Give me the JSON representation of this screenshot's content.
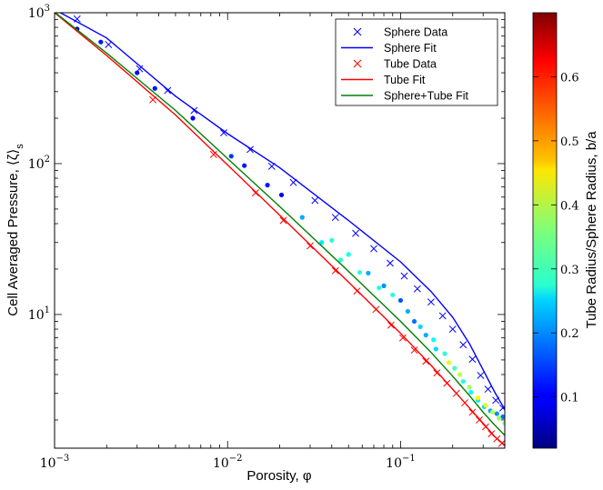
{
  "chart_data": {
    "type": "scatter",
    "title": "",
    "xlabel": "Porosity, φ",
    "ylabel": "Cell Averaged Pressure, ⟨ζ⟩",
    "ylabel_subscript": "s",
    "xscale": "log",
    "yscale": "log",
    "xlim": [
      0.001,
      0.4
    ],
    "ylim": [
      1.3,
      1000
    ],
    "x_ticks": [
      {
        "value": 0.001,
        "base": "10",
        "exp": "−3"
      },
      {
        "value": 0.01,
        "base": "10",
        "exp": "−2"
      },
      {
        "value": 0.1,
        "base": "10",
        "exp": "−1"
      }
    ],
    "y_ticks": [
      {
        "value": 10,
        "base": "10",
        "exp": "1"
      },
      {
        "value": 100,
        "base": "10",
        "exp": "2"
      },
      {
        "value": 1000,
        "base": "10",
        "exp": "3"
      }
    ],
    "legend_position": "top-right",
    "legend": [
      {
        "label": "Sphere Data",
        "kind": "marker",
        "color": "#0000ff"
      },
      {
        "label": "Sphere Fit",
        "kind": "line",
        "color": "#0000ff"
      },
      {
        "label": "Tube Data",
        "kind": "marker",
        "color": "#ff0000"
      },
      {
        "label": "Tube Fit",
        "kind": "line",
        "color": "#ff0000"
      },
      {
        "label": "Sphere+Tube Fit",
        "kind": "line",
        "color": "#008000"
      }
    ],
    "colorbar": {
      "label": "Tube Radius/Sphere Radius, b/a",
      "range": [
        0.02,
        0.7
      ],
      "ticks": [
        "0.1",
        "0.2",
        "0.3",
        "0.4",
        "0.5",
        "0.6"
      ]
    },
    "series": [
      {
        "name": "Sphere Data",
        "marker": "x",
        "color": "#0000ff",
        "x": [
          0.00135,
          0.00205,
          0.0031,
          0.0045,
          0.0064,
          0.0095,
          0.0135,
          0.018,
          0.024,
          0.032,
          0.042,
          0.055,
          0.07,
          0.087,
          0.105,
          0.125,
          0.15,
          0.175,
          0.2,
          0.23,
          0.26,
          0.29,
          0.32,
          0.355,
          0.39
        ],
        "y": [
          910,
          615,
          425,
          305,
          225,
          160,
          124,
          96,
          75,
          57,
          44,
          34.5,
          27.3,
          21.9,
          18.0,
          14.8,
          12.1,
          9.8,
          8.0,
          6.3,
          5.05,
          3.95,
          3.2,
          2.7,
          2.4
        ]
      },
      {
        "name": "Tube Data",
        "marker": "x",
        "color": "#ff0000",
        "x": [
          0.0037,
          0.0083,
          0.0145,
          0.021,
          0.03,
          0.042,
          0.056,
          0.072,
          0.088,
          0.103,
          0.12,
          0.14,
          0.162,
          0.185,
          0.21,
          0.235,
          0.26,
          0.285,
          0.31,
          0.335,
          0.36,
          0.385
        ],
        "y": [
          265,
          115,
          64,
          42,
          28.5,
          19.5,
          14.3,
          10.8,
          8.5,
          7.0,
          5.8,
          4.9,
          4.1,
          3.5,
          3.0,
          2.6,
          2.25,
          2.0,
          1.8,
          1.62,
          1.5,
          1.4
        ]
      },
      {
        "name": "Intermediate Data",
        "marker": "o",
        "color_by": "b/a",
        "x": [
          0.00135,
          0.00185,
          0.003,
          0.0038,
          0.0063,
          0.0105,
          0.0125,
          0.017,
          0.0205,
          0.027,
          0.035,
          0.045,
          0.058,
          0.075,
          0.09,
          0.11,
          0.13,
          0.155,
          0.18,
          0.205,
          0.23,
          0.255,
          0.28,
          0.305,
          0.33,
          0.36,
          0.39,
          0.19,
          0.22,
          0.25,
          0.28,
          0.31,
          0.34,
          0.37,
          0.4,
          0.12,
          0.14,
          0.16,
          0.1,
          0.08,
          0.065,
          0.05,
          0.04
        ],
        "y": [
          780,
          640,
          400,
          315,
          200,
          112,
          97,
          72,
          62,
          44,
          30,
          23,
          19,
          15,
          13.5,
          10.5,
          8.3,
          6.8,
          5.5,
          4.4,
          3.6,
          3.05,
          2.7,
          2.45,
          2.3,
          2.2,
          2.1,
          4.8,
          4.0,
          3.3,
          2.8,
          2.5,
          2.25,
          2.05,
          1.9,
          9.0,
          7.3,
          5.9,
          12.4,
          15.5,
          18.8,
          25,
          31
        ],
        "c": [
          0.1,
          0.12,
          0.1,
          0.12,
          0.1,
          0.14,
          0.12,
          0.12,
          0.1,
          0.22,
          0.26,
          0.3,
          0.3,
          0.3,
          0.3,
          0.22,
          0.25,
          0.28,
          0.3,
          0.32,
          0.3,
          0.28,
          0.26,
          0.24,
          0.22,
          0.2,
          0.18,
          0.42,
          0.4,
          0.38,
          0.45,
          0.42,
          0.4,
          0.38,
          0.35,
          0.18,
          0.22,
          0.25,
          0.16,
          0.2,
          0.22,
          0.28,
          0.3
        ]
      },
      {
        "name": "Sphere Fit",
        "kind": "line",
        "color": "#0000ff",
        "x": [
          0.001,
          0.002,
          0.005,
          0.01,
          0.02,
          0.05,
          0.1,
          0.15,
          0.2,
          0.25,
          0.3,
          0.35,
          0.4
        ],
        "y": [
          1050,
          680,
          280,
          158,
          94,
          42,
          22.3,
          14.2,
          9.6,
          6.4,
          4.3,
          3.05,
          2.35
        ]
      },
      {
        "name": "Tube Fit",
        "kind": "line",
        "color": "#ff0000",
        "x": [
          0.001,
          0.002,
          0.005,
          0.01,
          0.02,
          0.05,
          0.1,
          0.15,
          0.2,
          0.25,
          0.3,
          0.35,
          0.4
        ],
        "y": [
          1000,
          520,
          210,
          98,
          45.5,
          16.4,
          7.5,
          4.6,
          3.2,
          2.4,
          1.9,
          1.55,
          1.36
        ]
      },
      {
        "name": "Sphere+Tube Fit",
        "kind": "line",
        "color": "#008000",
        "x": [
          0.001,
          0.002,
          0.005,
          0.01,
          0.02,
          0.05,
          0.1,
          0.15,
          0.2,
          0.25,
          0.3,
          0.35,
          0.4
        ],
        "y": [
          1010,
          540,
          225,
          108,
          52,
          19.3,
          9.0,
          5.6,
          3.9,
          2.9,
          2.25,
          1.85,
          1.58
        ]
      }
    ]
  }
}
